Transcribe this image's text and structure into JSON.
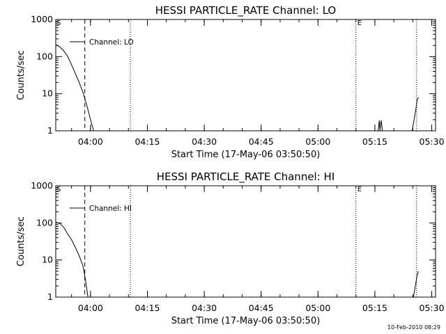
{
  "footer_timestamp": "10-Feb-2010 08:29",
  "chart_data": [
    {
      "type": "line",
      "title": "HESSI PARTICLE_RATE Channel: LO",
      "xlabel": "Start Time (17-May-06 03:50:50)",
      "ylabel": "Counts/sec",
      "x_ticks": [
        "04:00",
        "04:15",
        "04:30",
        "04:45",
        "05:00",
        "05:15",
        "05:30"
      ],
      "y_ticks": [
        "1",
        "10",
        "100",
        "1000"
      ],
      "y_scale": "log",
      "ylim": [
        1,
        1000
      ],
      "xlim": [
        "03:50:50",
        "05:31:00"
      ],
      "legend": {
        "placement": "top-left",
        "entries": [
          {
            "name": "Channel: LO",
            "style": "solid"
          }
        ]
      },
      "markers": {
        "start": "S",
        "end": "E"
      },
      "vlines": [
        {
          "time": "03:58:30",
          "style": "dashed"
        },
        {
          "time": "04:10:30",
          "style": "dotted"
        },
        {
          "time": "05:10:00",
          "style": "dotted"
        },
        {
          "time": "05:26:00",
          "style": "dotted"
        }
      ],
      "series": [
        {
          "name": "Channel: LO",
          "segments": [
            [
              [
                "03:50:50",
                210
              ],
              [
                "03:52:00",
                180
              ],
              [
                "03:53:00",
                140
              ],
              [
                "03:54:00",
                100
              ],
              [
                "03:55:00",
                60
              ],
              [
                "03:56:00",
                35
              ],
              [
                "03:57:00",
                20
              ],
              [
                "03:58:00",
                11
              ],
              [
                "03:59:00",
                5
              ],
              [
                "04:00:00",
                2
              ],
              [
                "04:00:50",
                1
              ]
            ],
            [
              [
                "05:15:50",
                1
              ],
              [
                "05:16:10",
                1.9
              ],
              [
                "05:16:20",
                1
              ],
              [
                "05:16:40",
                1.9
              ],
              [
                "05:17:00",
                1
              ]
            ],
            [
              [
                "05:24:50",
                1
              ],
              [
                "05:25:20",
                2
              ],
              [
                "05:25:50",
                4
              ],
              [
                "05:26:10",
                7
              ],
              [
                "05:26:30",
                8
              ]
            ]
          ]
        }
      ]
    },
    {
      "type": "line",
      "title": "HESSI PARTICLE_RATE Channel: HI",
      "xlabel": "Start Time (17-May-06 03:50:50)",
      "ylabel": "Counts/sec",
      "x_ticks": [
        "04:00",
        "04:15",
        "04:30",
        "04:45",
        "05:00",
        "05:15",
        "05:30"
      ],
      "y_ticks": [
        "1",
        "10",
        "100",
        "1000"
      ],
      "y_scale": "log",
      "ylim": [
        1,
        1000
      ],
      "xlim": [
        "03:50:50",
        "05:31:00"
      ],
      "legend": {
        "placement": "top-left",
        "entries": [
          {
            "name": "Channel: HI",
            "style": "solid"
          }
        ]
      },
      "markers": {
        "start": "S",
        "end": "E"
      },
      "vlines": [
        {
          "time": "03:58:30",
          "style": "dashed"
        },
        {
          "time": "04:10:30",
          "style": "dotted"
        },
        {
          "time": "05:10:00",
          "style": "dotted"
        },
        {
          "time": "05:26:00",
          "style": "dotted"
        }
      ],
      "series": [
        {
          "name": "Channel: HI",
          "segments": [
            [
              [
                "03:50:50",
                105
              ],
              [
                "03:52:00",
                95
              ],
              [
                "03:53:00",
                75
              ],
              [
                "03:54:00",
                50
              ],
              [
                "03:55:00",
                35
              ],
              [
                "03:56:00",
                22
              ],
              [
                "03:57:00",
                13
              ],
              [
                "03:58:00",
                7
              ],
              [
                "03:58:40",
                3
              ],
              [
                "03:59:20",
                1
              ]
            ],
            [
              [
                "05:25:10",
                1
              ],
              [
                "05:25:40",
                2
              ],
              [
                "05:26:10",
                4
              ],
              [
                "05:26:30",
                5
              ]
            ]
          ]
        }
      ]
    }
  ]
}
